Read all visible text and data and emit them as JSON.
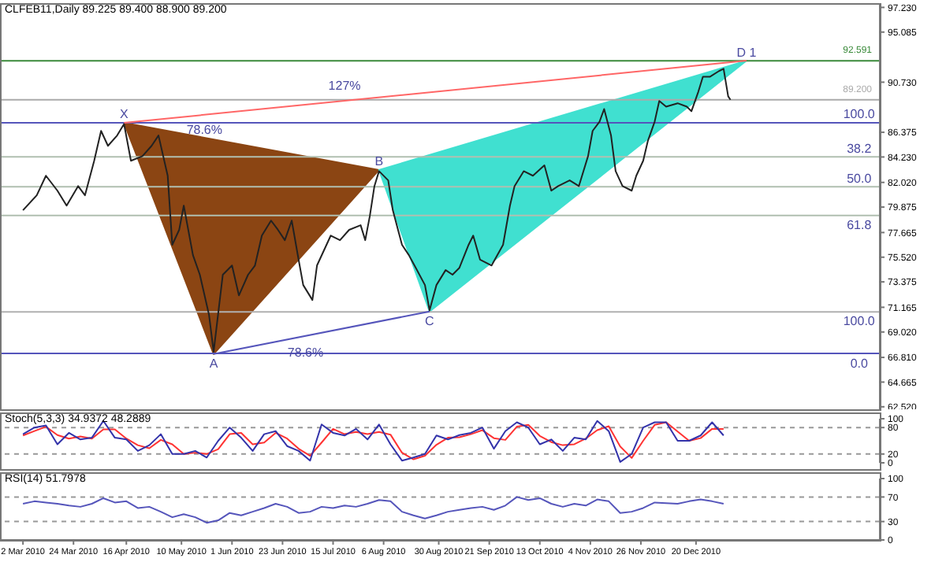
{
  "chart_data": [
    {
      "type": "line",
      "title": "CLFEB11,Daily  89.225 89.400 88.900 89.200",
      "tick_labels": "y",
      "xlim": [
        "2010-02-20",
        "2011-03-10"
      ],
      "ylim": [
        62.3,
        97.6
      ],
      "yticks": [
        {
          "value": 97.23,
          "label": "97.230"
        },
        {
          "value": 95.085,
          "label": "95.085"
        },
        {
          "value": 90.73,
          "label": "90.730"
        },
        {
          "value": 86.375,
          "label": "86.375"
        },
        {
          "value": 84.23,
          "label": "84.230"
        },
        {
          "value": 82.02,
          "label": "82.020"
        },
        {
          "value": 79.875,
          "label": "79.875"
        },
        {
          "value": 77.665,
          "label": "77.665"
        },
        {
          "value": 75.52,
          "label": "75.520"
        },
        {
          "value": 73.375,
          "label": "73.375"
        },
        {
          "value": 71.165,
          "label": "71.165"
        },
        {
          "value": 69.02,
          "label": "69.020"
        },
        {
          "value": 66.81,
          "label": "66.810"
        },
        {
          "value": 64.665,
          "label": "64.665"
        },
        {
          "value": 62.52,
          "label": "62.520"
        }
      ],
      "ref_lines": [
        {
          "axis": "y",
          "value": 92.591,
          "label": "92.591",
          "color": "#3a8a3a"
        },
        {
          "axis": "y",
          "value": 89.2,
          "label": "89.200",
          "color": "#aaaaaa"
        },
        {
          "axis": "y",
          "value": 87.2,
          "color": "#5555bb"
        },
        {
          "axis": "y",
          "value": 84.24,
          "color": "#b0bfb0"
        },
        {
          "axis": "y",
          "value": 81.65,
          "color": "#b0bfb0"
        },
        {
          "axis": "y",
          "value": 79.14,
          "color": "#b0bfb0"
        },
        {
          "axis": "y",
          "value": 70.77,
          "color": "#b0b0b0"
        },
        {
          "axis": "y",
          "value": 67.15,
          "color": "#5555bb"
        }
      ],
      "annotations": [
        {
          "text": "X",
          "x": "2010-04-15",
          "y": 87.2
        },
        {
          "text": "A",
          "x": "2010-05-24",
          "y": 67.1
        },
        {
          "text": "B",
          "x": "2010-08-04",
          "y": 83.1
        },
        {
          "text": "C",
          "x": "2010-08-26",
          "y": 70.8
        },
        {
          "text": "D 1",
          "x": "2011-01-11",
          "y": 92.6
        },
        {
          "text": "127%",
          "x": "2010-07-20",
          "y": 89.6
        },
        {
          "text": "78.6%",
          "x": "2010-05-20",
          "y": 85.9
        },
        {
          "text": "78.6%",
          "x": "2010-07-03",
          "y": 68.0
        },
        {
          "text": "100.0",
          "x": "2011-03-01",
          "y": 87.2
        },
        {
          "text": "38.2",
          "x": "2011-03-01",
          "y": 84.24
        },
        {
          "text": "50.0",
          "x": "2011-03-01",
          "y": 81.65
        },
        {
          "text": "61.8",
          "x": "2011-03-01",
          "y": 79.14
        },
        {
          "text": "100.0",
          "x": "2011-03-01",
          "y": 70.77
        },
        {
          "text": "0.0",
          "x": "2011-03-01",
          "y": 67.15
        }
      ],
      "series": [
        {
          "type": "area",
          "color": "#8b4513",
          "x": [
            "2010-04-15",
            "2010-05-24",
            "2010-08-04"
          ],
          "values": [
            87.2,
            67.1,
            83.1
          ]
        },
        {
          "type": "area",
          "color": "#40e0d0",
          "x": [
            "2010-08-04",
            "2010-08-26",
            "2011-01-11"
          ],
          "values": [
            83.1,
            70.8,
            92.6
          ]
        },
        {
          "type": "line",
          "color": "#ff6666",
          "x": [
            "2010-04-15",
            "2011-01-11"
          ],
          "values": [
            87.2,
            92.6
          ]
        },
        {
          "type": "line",
          "color": "#5555bb",
          "x": [
            "2010-05-24",
            "2010-08-26"
          ],
          "values": [
            67.1,
            70.8
          ]
        },
        {
          "color": "#222222",
          "x": [
            "2010-03-02",
            "2010-03-08",
            "2010-03-12",
            "2010-03-17",
            "2010-03-21",
            "2010-03-26",
            "2010-03-29",
            "2010-04-02",
            "2010-04-05",
            "2010-04-08",
            "2010-04-12",
            "2010-04-15",
            "2010-04-18",
            "2010-04-23",
            "2010-04-27",
            "2010-04-30",
            "2010-05-04",
            "2010-05-06",
            "2010-05-09",
            "2010-05-11",
            "2010-05-15",
            "2010-05-18",
            "2010-05-22",
            "2010-05-24",
            "2010-05-28",
            "2010-06-01",
            "2010-06-04",
            "2010-06-08",
            "2010-06-11",
            "2010-06-14",
            "2010-06-18",
            "2010-06-21",
            "2010-06-24",
            "2010-06-27",
            "2010-06-30",
            "2010-07-02",
            "2010-07-06",
            "2010-07-08",
            "2010-07-11",
            "2010-07-14",
            "2010-07-18",
            "2010-07-22",
            "2010-07-27",
            "2010-07-29",
            "2010-07-31",
            "2010-08-02",
            "2010-08-04",
            "2010-08-08",
            "2010-08-10",
            "2010-08-14",
            "2010-08-17",
            "2010-08-20",
            "2010-08-24",
            "2010-08-26",
            "2010-08-29",
            "2010-09-02",
            "2010-09-05",
            "2010-09-08",
            "2010-09-12",
            "2010-09-14",
            "2010-09-17",
            "2010-09-22",
            "2010-09-27",
            "2010-09-30",
            "2010-10-02",
            "2010-10-06",
            "2010-10-10",
            "2010-10-15",
            "2010-10-18",
            "2010-10-21",
            "2010-10-26",
            "2010-10-30",
            "2010-11-03",
            "2010-11-05",
            "2010-11-08",
            "2010-11-10",
            "2010-11-13",
            "2010-11-15",
            "2010-11-18",
            "2010-11-22",
            "2010-11-24",
            "2010-11-27",
            "2010-11-29",
            "2010-12-02",
            "2010-12-04",
            "2010-12-07",
            "2010-12-12",
            "2010-12-16",
            "2010-12-18",
            "2010-12-21",
            "2010-12-23",
            "2010-12-26",
            "2010-12-30",
            "2011-01-01",
            "2011-01-03",
            "2011-01-04"
          ],
          "values": [
            79.6,
            80.9,
            82.6,
            81.3,
            80.0,
            81.7,
            80.9,
            83.9,
            86.5,
            85.2,
            86.1,
            87.1,
            83.9,
            84.3,
            85.2,
            86.1,
            82.6,
            76.6,
            77.9,
            80.0,
            75.7,
            74.0,
            70.5,
            67.3,
            74.0,
            74.8,
            72.2,
            74.0,
            74.8,
            77.4,
            78.7,
            77.9,
            77.0,
            78.7,
            75.3,
            73.1,
            71.8,
            74.8,
            76.1,
            77.4,
            77.0,
            77.9,
            78.3,
            77.0,
            79.1,
            81.7,
            83.0,
            82.2,
            79.6,
            76.6,
            75.7,
            74.6,
            73.1,
            70.9,
            73.1,
            74.4,
            74.0,
            74.6,
            76.6,
            77.4,
            75.3,
            74.8,
            76.6,
            80.0,
            81.7,
            83.0,
            82.6,
            83.5,
            81.3,
            81.7,
            82.2,
            81.7,
            84.3,
            86.5,
            87.3,
            88.4,
            86.1,
            83.0,
            81.7,
            81.3,
            82.6,
            83.9,
            85.6,
            87.3,
            89.1,
            88.6,
            88.9,
            88.6,
            88.2,
            89.9,
            91.2,
            91.2,
            91.7,
            91.9,
            89.5,
            89.2
          ]
        }
      ]
    },
    {
      "type": "line",
      "title": "Stoch(5,3,3) 34.9372 48.2889",
      "tick_labels": "y",
      "xlim": [
        "2010-02-20",
        "2011-03-10"
      ],
      "ylim": [
        0,
        100
      ],
      "yticks": [
        0,
        20,
        80,
        100
      ],
      "ref_lines": [
        {
          "axis": "y",
          "value": 80,
          "color": "#999999",
          "line_style": "dashed"
        },
        {
          "axis": "y",
          "value": 20,
          "color": "#999999",
          "line_style": "dashed"
        }
      ],
      "x": [
        "2010-03-02",
        "2010-03-07",
        "2010-03-12",
        "2010-03-17",
        "2010-03-22",
        "2010-03-27",
        "2010-04-01",
        "2010-04-06",
        "2010-04-11",
        "2010-04-16",
        "2010-04-21",
        "2010-04-26",
        "2010-05-01",
        "2010-05-06",
        "2010-05-11",
        "2010-05-16",
        "2010-05-21",
        "2010-05-26",
        "2010-05-31",
        "2010-06-05",
        "2010-06-10",
        "2010-06-15",
        "2010-06-20",
        "2010-06-25",
        "2010-06-30",
        "2010-07-05",
        "2010-07-10",
        "2010-07-15",
        "2010-07-20",
        "2010-07-25",
        "2010-07-30",
        "2010-08-04",
        "2010-08-09",
        "2010-08-14",
        "2010-08-19",
        "2010-08-24",
        "2010-08-29",
        "2010-09-03",
        "2010-09-08",
        "2010-09-13",
        "2010-09-18",
        "2010-09-23",
        "2010-09-28",
        "2010-10-03",
        "2010-10-08",
        "2010-10-13",
        "2010-10-18",
        "2010-10-23",
        "2010-10-28",
        "2010-11-02",
        "2010-11-07",
        "2010-11-12",
        "2010-11-17",
        "2010-11-22",
        "2010-11-27",
        "2010-12-02",
        "2010-12-07",
        "2010-12-12",
        "2010-12-17",
        "2010-12-22",
        "2010-12-27",
        "2011-01-01"
      ],
      "series": [
        {
          "color": "#ff3333",
          "values": [
            62,
            72,
            82,
            63,
            55,
            60,
            55,
            76,
            76,
            55,
            40,
            33,
            52,
            42,
            20,
            23,
            20,
            31,
            65,
            68,
            42,
            46,
            68,
            55,
            32,
            16,
            46,
            77,
            65,
            70,
            65,
            70,
            64,
            23,
            8,
            16,
            41,
            57,
            58,
            65,
            74,
            56,
            52,
            82,
            86,
            61,
            47,
            40,
            42,
            55,
            74,
            83,
            37,
            11,
            50,
            86,
            92,
            71,
            50,
            56,
            77,
            77
          ]
        },
        {
          "color": "#3333aa",
          "values": [
            65,
            80,
            85,
            42,
            68,
            53,
            57,
            95,
            57,
            53,
            27,
            40,
            65,
            20,
            20,
            27,
            12,
            50,
            80,
            57,
            27,
            65,
            72,
            38,
            27,
            5,
            87,
            68,
            62,
            77,
            53,
            87,
            42,
            5,
            12,
            20,
            62,
            53,
            63,
            68,
            80,
            32,
            72,
            92,
            80,
            42,
            53,
            27,
            57,
            53,
            95,
            72,
            2,
            20,
            80,
            92,
            92,
            50,
            50,
            62,
            92,
            62
          ]
        }
      ]
    },
    {
      "type": "line",
      "title": "RSI(14) 51.7978",
      "xlim": [
        "2010-02-20",
        "2011-03-10"
      ],
      "ylim": [
        0,
        100
      ],
      "yticks": [
        0,
        30,
        70,
        100
      ],
      "xticks": [
        {
          "value": "2010-03-02",
          "label": "2 Mar 2010"
        },
        {
          "value": "2010-03-24",
          "label": "24 Mar 2010"
        },
        {
          "value": "2010-04-16",
          "label": "16 Apr 2010"
        },
        {
          "value": "2010-05-10",
          "label": "10 May 2010"
        },
        {
          "value": "2010-06-01",
          "label": "1 Jun 2010"
        },
        {
          "value": "2010-06-23",
          "label": "23 Jun 2010"
        },
        {
          "value": "2010-07-15",
          "label": "15 Jul 2010"
        },
        {
          "value": "2010-08-06",
          "label": "6 Aug 2010"
        },
        {
          "value": "2010-08-30",
          "label": "30 Aug 2010"
        },
        {
          "value": "2010-09-21",
          "label": "21 Sep 2010"
        },
        {
          "value": "2010-10-13",
          "label": "13 Oct 2010"
        },
        {
          "value": "2010-11-04",
          "label": "4 Nov 2010"
        },
        {
          "value": "2010-11-26",
          "label": "26 Nov 2010"
        },
        {
          "value": "2010-12-20",
          "label": "20 Dec 2010"
        }
      ],
      "ref_lines": [
        {
          "axis": "y",
          "value": 70,
          "color": "#999999",
          "line_style": "dashed"
        },
        {
          "axis": "y",
          "value": 30,
          "color": "#999999",
          "line_style": "dashed"
        }
      ],
      "x": [
        "2010-03-02",
        "2010-03-07",
        "2010-03-12",
        "2010-03-17",
        "2010-03-22",
        "2010-03-27",
        "2010-04-01",
        "2010-04-06",
        "2010-04-11",
        "2010-04-16",
        "2010-04-21",
        "2010-04-26",
        "2010-05-01",
        "2010-05-06",
        "2010-05-11",
        "2010-05-16",
        "2010-05-21",
        "2010-05-26",
        "2010-05-31",
        "2010-06-05",
        "2010-06-10",
        "2010-06-15",
        "2010-06-20",
        "2010-06-25",
        "2010-06-30",
        "2010-07-05",
        "2010-07-10",
        "2010-07-15",
        "2010-07-20",
        "2010-07-25",
        "2010-07-30",
        "2010-08-04",
        "2010-08-09",
        "2010-08-14",
        "2010-08-19",
        "2010-08-24",
        "2010-08-29",
        "2010-09-03",
        "2010-09-08",
        "2010-09-13",
        "2010-09-18",
        "2010-09-23",
        "2010-09-28",
        "2010-10-03",
        "2010-10-08",
        "2010-10-13",
        "2010-10-18",
        "2010-10-23",
        "2010-10-28",
        "2010-11-02",
        "2010-11-07",
        "2010-11-12",
        "2010-11-17",
        "2010-11-22",
        "2010-11-27",
        "2010-12-02",
        "2010-12-07",
        "2010-12-12",
        "2010-12-17",
        "2010-12-22",
        "2010-12-27",
        "2011-01-01"
      ],
      "series": [
        {
          "color": "#5555bb",
          "values": [
            59,
            63,
            61,
            59,
            56,
            54,
            59,
            68,
            61,
            63,
            52,
            54,
            46,
            37,
            42,
            37,
            28,
            32,
            44,
            40,
            46,
            52,
            59,
            54,
            44,
            46,
            54,
            52,
            56,
            54,
            59,
            65,
            63,
            46,
            40,
            35,
            40,
            46,
            49,
            52,
            54,
            49,
            56,
            70,
            65,
            68,
            59,
            54,
            59,
            56,
            66,
            63,
            44,
            46,
            52,
            61,
            60,
            59,
            63,
            66,
            63,
            59
          ]
        }
      ]
    }
  ]
}
